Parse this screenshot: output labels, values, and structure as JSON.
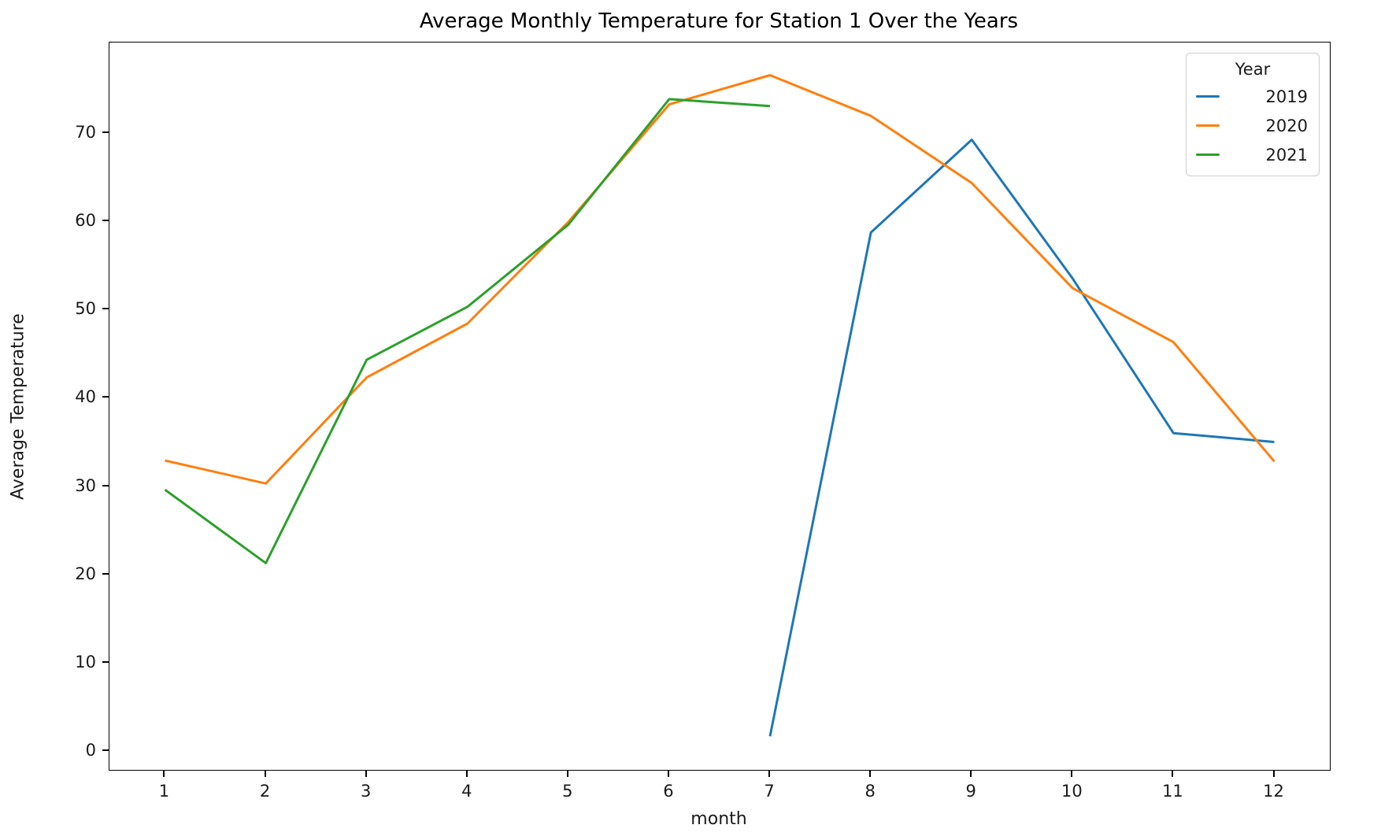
{
  "chart_data": {
    "type": "line",
    "title": "Average Monthly Temperature for Station 1 Over the Years",
    "xlabel": "month",
    "ylabel": "Average Temperature",
    "legend_title": "Year",
    "legend_position": "upper right",
    "grid": false,
    "x_ticks": [
      "1",
      "2",
      "3",
      "4",
      "5",
      "6",
      "7",
      "8",
      "9",
      "10",
      "11",
      "12"
    ],
    "y_ticks": [
      "0",
      "10",
      "20",
      "30",
      "40",
      "50",
      "60",
      "70"
    ],
    "x_tick_values": [
      1,
      2,
      3,
      4,
      5,
      6,
      7,
      8,
      9,
      10,
      11,
      12
    ],
    "y_tick_values": [
      0,
      10,
      20,
      30,
      40,
      50,
      60,
      70
    ],
    "xlim": [
      0.45,
      12.55
    ],
    "ylim": [
      -2.1,
      80.2
    ],
    "series": [
      {
        "name": "2019",
        "color": "#1f77b4",
        "x": [
          7,
          8,
          9,
          10,
          11,
          12
        ],
        "values": [
          1.7,
          58.7,
          69.2,
          53.5,
          36.0,
          35.0
        ]
      },
      {
        "name": "2020",
        "color": "#ff7f0e",
        "x": [
          1,
          2,
          3,
          4,
          5,
          6,
          7,
          8,
          9,
          10,
          11,
          12
        ],
        "values": [
          32.9,
          30.3,
          42.3,
          48.4,
          59.9,
          73.2,
          76.5,
          71.9,
          64.3,
          52.4,
          46.3,
          32.8
        ]
      },
      {
        "name": "2021",
        "color": "#2ca02c",
        "x": [
          1,
          2,
          3,
          4,
          5,
          6,
          7
        ],
        "values": [
          29.6,
          21.3,
          44.3,
          50.3,
          59.6,
          73.8,
          73.0
        ]
      }
    ]
  }
}
